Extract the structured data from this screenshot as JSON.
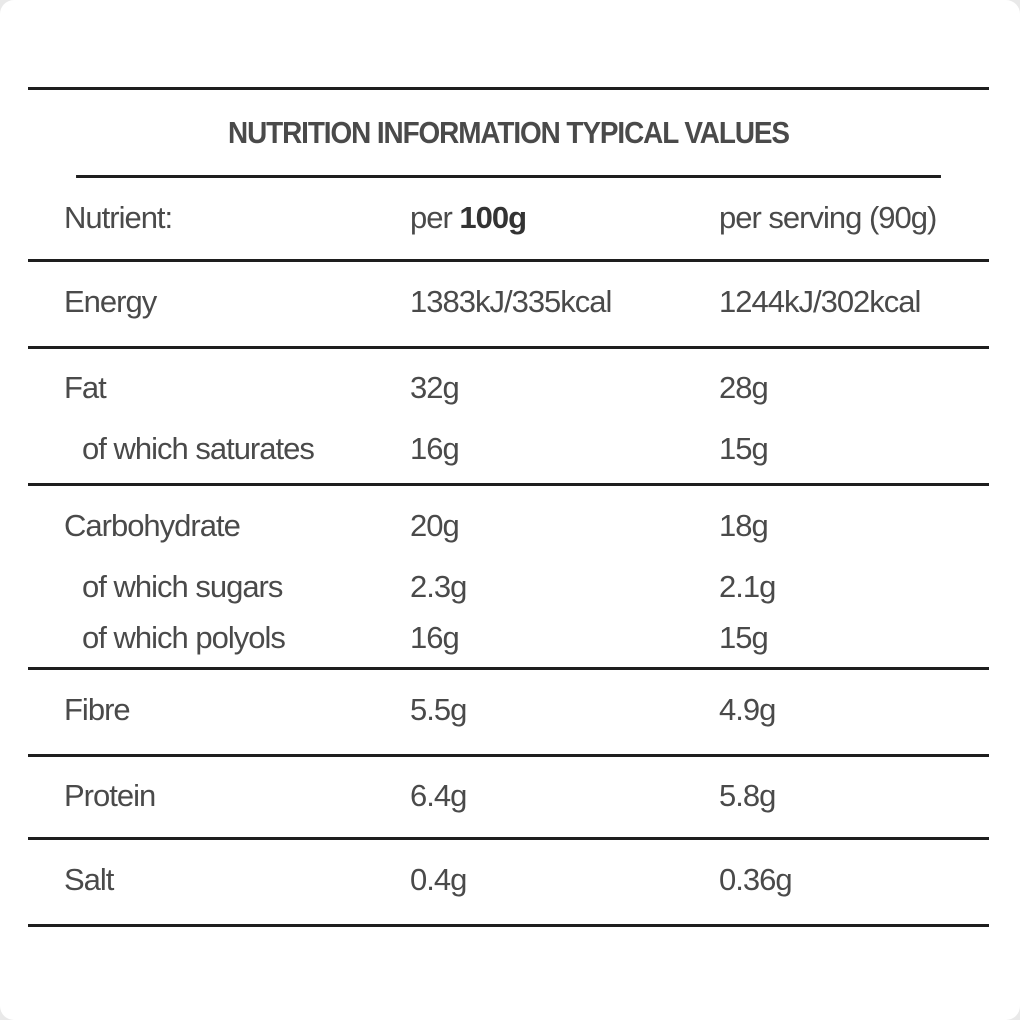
{
  "title": "NUTRITION INFORMATION TYPICAL VALUES",
  "header": {
    "nutrient": "Nutrient:",
    "per100_prefix": "per ",
    "per100_bold": "100g",
    "per_serving": "per serving (90g)"
  },
  "rows": {
    "energy": {
      "name": "Energy",
      "per100": "1383kJ/335kcal",
      "serving": "1244kJ/302kcal"
    },
    "fat": {
      "name": "Fat",
      "per100": "32g",
      "serving": "28g"
    },
    "saturates": {
      "name": "of which saturates",
      "per100": "16g",
      "serving": "15g"
    },
    "carbs": {
      "name": "Carbohydrate",
      "per100": "20g",
      "serving": "18g"
    },
    "sugars": {
      "name": "of which sugars",
      "per100": "2.3g",
      "serving": "2.1g"
    },
    "polyols": {
      "name": "of which polyols",
      "per100": "16g",
      "serving": "15g"
    },
    "fibre": {
      "name": "Fibre",
      "per100": "5.5g",
      "serving": "4.9g"
    },
    "protein": {
      "name": "Protein",
      "per100": "6.4g",
      "serving": "5.8g"
    },
    "salt": {
      "name": "Salt",
      "per100": "0.4g",
      "serving": "0.36g"
    }
  }
}
